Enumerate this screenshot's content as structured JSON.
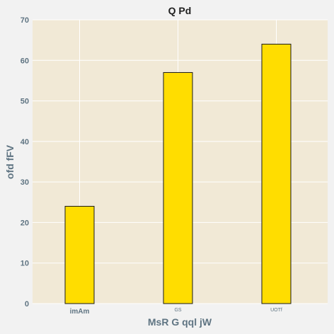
{
  "chart_data": {
    "type": "bar",
    "title": "Q Pd",
    "xlabel": "MsR G qql jW",
    "ylabel": "ofd fFV",
    "categories": [
      "imAm",
      "GS",
      "UOTf"
    ],
    "values": [
      24,
      57,
      64
    ],
    "ylim": [
      0,
      70
    ],
    "yticks": [
      0,
      10,
      20,
      30,
      40,
      50,
      60,
      70
    ],
    "grid": true,
    "colors": {
      "bar_fill": "#ffdd00",
      "bar_edge": "#1a1a1a",
      "plot_background": "#f1e9d6",
      "grid": "#ffffff",
      "axis_text": "#5f7482"
    }
  }
}
